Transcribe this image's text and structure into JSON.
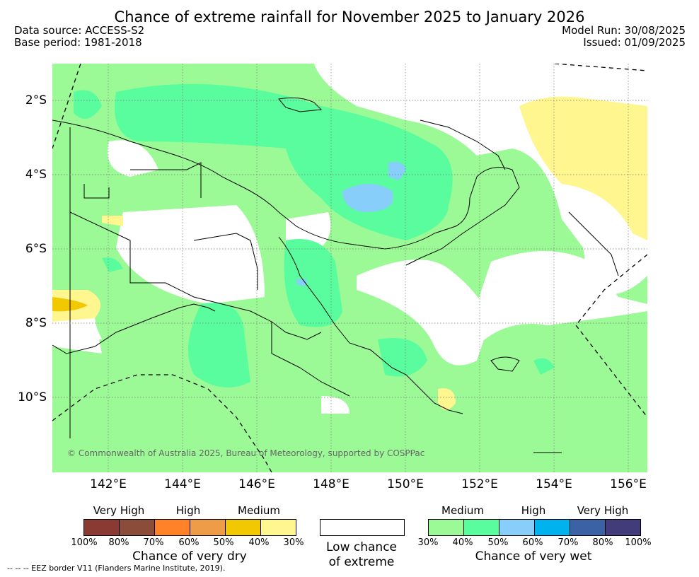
{
  "title": "Chance of extreme rainfall for November 2025 to January 2026",
  "meta": {
    "data_source": "Data source: ACCESS-S2",
    "base_period": "Base period: 1981-2018",
    "model_run": "Model Run: 30/08/2025",
    "issued": "Issued: 01/09/2025"
  },
  "map": {
    "lat_labels": [
      "2°S",
      "4°S",
      "6°S",
      "8°S",
      "10°S"
    ],
    "lon_labels": [
      "142°E",
      "144°E",
      "146°E",
      "148°E",
      "150°E",
      "152°E",
      "154°E",
      "156°E"
    ],
    "credit": "© Commonwealth of Australia 2025, Bureau of Meteorology, supported by COSPPac"
  },
  "legend": {
    "dry": {
      "categories": [
        "Very High",
        "High",
        "Medium"
      ],
      "colors": [
        "#8b3a33",
        "#8b4c3a",
        "#ff8128",
        "#ee9c48",
        "#f2c802",
        "#fff68f"
      ],
      "percents": [
        "100%",
        "80%",
        "70%",
        "60%",
        "50%",
        "40%",
        "30%"
      ],
      "title": "Chance of very dry"
    },
    "low": {
      "line1": "Low chance",
      "line2": "of extreme"
    },
    "wet": {
      "categories": [
        "Medium",
        "High",
        "Very High"
      ],
      "colors": [
        "#9cfa96",
        "#59fd9d",
        "#87cefa",
        "#00b2ee",
        "#3a62a4",
        "#423c7a"
      ],
      "percents": [
        "30%",
        "40%",
        "50%",
        "60%",
        "70%",
        "80%",
        "100%"
      ],
      "title": "Chance of very wet"
    },
    "eez_note": "--  --  -- EEZ border V11 (Flanders Marine Institute, 2019)."
  }
}
